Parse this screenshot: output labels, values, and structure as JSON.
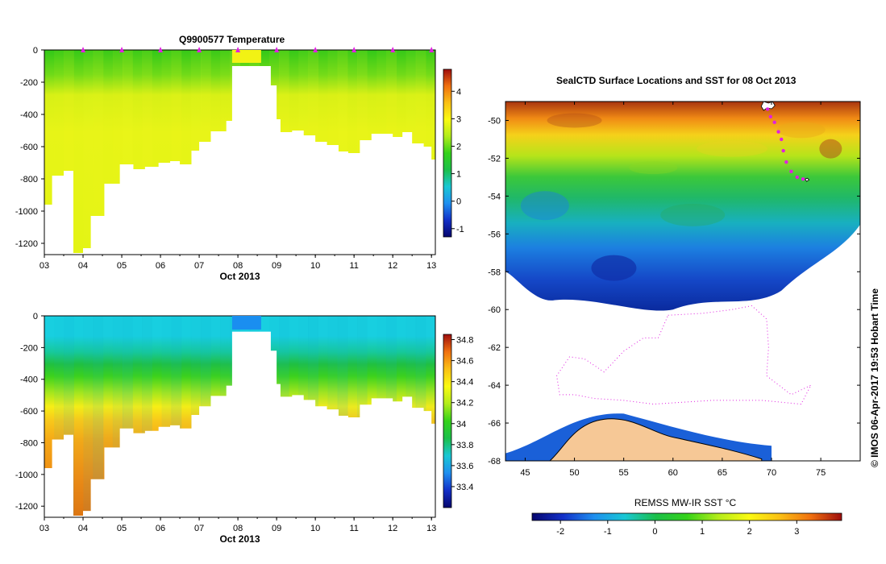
{
  "chart_data": [
    {
      "type": "heatmap",
      "title": "Q9900577  Temperature",
      "variable": "temperature",
      "xlabel": "Oct 2013",
      "x_ticks": [
        "03",
        "04",
        "05",
        "06",
        "07",
        "08",
        "09",
        "10",
        "11",
        "12",
        "13"
      ],
      "y_ticks": [
        "0",
        "-200",
        "-400",
        "-600",
        "-800",
        "-1000",
        "-1200"
      ],
      "ylim": [
        -1270,
        0
      ],
      "colorbar_ticks": [
        "4",
        "3",
        "2",
        "1",
        "0",
        "-1"
      ],
      "colorbar_range": [
        -1.3,
        4.8
      ],
      "profile_markers_day": [
        4.0,
        5.0,
        6.0,
        7.0,
        8.0,
        9.0,
        10.0,
        11.0,
        12.0,
        13.0
      ],
      "profiles": [
        {
          "day": 3.0,
          "depth": 960
        },
        {
          "day": 3.2,
          "depth": 780
        },
        {
          "day": 3.5,
          "depth": 750
        },
        {
          "day": 3.75,
          "depth": 1260
        },
        {
          "day": 4.0,
          "depth": 1230
        },
        {
          "day": 4.2,
          "depth": 1030
        },
        {
          "day": 4.55,
          "depth": 830
        },
        {
          "day": 4.95,
          "depth": 710
        },
        {
          "day": 5.3,
          "depth": 740
        },
        {
          "day": 5.6,
          "depth": 725
        },
        {
          "day": 5.95,
          "depth": 700
        },
        {
          "day": 6.25,
          "depth": 690
        },
        {
          "day": 6.5,
          "depth": 710
        },
        {
          "day": 6.8,
          "depth": 625
        },
        {
          "day": 7.0,
          "depth": 570
        },
        {
          "day": 7.3,
          "depth": 505
        },
        {
          "day": 7.7,
          "depth": 440
        },
        {
          "day": 7.85,
          "depth": 100
        },
        {
          "day": 8.6,
          "depth": 100
        },
        {
          "day": 8.85,
          "depth": 220
        },
        {
          "day": 9.0,
          "depth": 430
        },
        {
          "day": 9.1,
          "depth": 510
        },
        {
          "day": 9.4,
          "depth": 500
        },
        {
          "day": 9.7,
          "depth": 530
        },
        {
          "day": 10.0,
          "depth": 570
        },
        {
          "day": 10.3,
          "depth": 590
        },
        {
          "day": 10.6,
          "depth": 630
        },
        {
          "day": 10.85,
          "depth": 640
        },
        {
          "day": 11.15,
          "depth": 560
        },
        {
          "day": 11.45,
          "depth": 520
        },
        {
          "day": 11.75,
          "depth": 520
        },
        {
          "day": 12.0,
          "depth": 540
        },
        {
          "day": 12.25,
          "depth": 510
        },
        {
          "day": 12.5,
          "depth": 580
        },
        {
          "day": 12.8,
          "depth": 600
        },
        {
          "day": 13.0,
          "depth": 680
        }
      ]
    },
    {
      "type": "heatmap",
      "title": "",
      "variable": "salinity",
      "xlabel": "Oct 2013",
      "x_ticks": [
        "03",
        "04",
        "05",
        "06",
        "07",
        "08",
        "09",
        "10",
        "11",
        "12",
        "13"
      ],
      "y_ticks": [
        "0",
        "-200",
        "-400",
        "-600",
        "-800",
        "-1000",
        "-1200"
      ],
      "ylim": [
        -1270,
        0
      ],
      "colorbar_ticks": [
        "34.8",
        "34.6",
        "34.4",
        "34.2",
        "34",
        "33.8",
        "33.6",
        "33.4"
      ],
      "colorbar_range": [
        33.2,
        34.85
      ]
    },
    {
      "type": "heatmap",
      "title": "SealCTD Surface Locations and SST for 08 Oct 2013",
      "variable": "sea surface temperature",
      "x_ticks": [
        "45",
        "50",
        "55",
        "60",
        "65",
        "70",
        "75"
      ],
      "y_ticks": [
        "-50",
        "-52",
        "-54",
        "-56",
        "-58",
        "-60",
        "-62",
        "-64",
        "-66",
        "-68"
      ],
      "xlim": [
        43,
        79
      ],
      "ylim": [
        -68,
        -49
      ],
      "colorbar_title": "REMSS MW-IR SST °C",
      "colorbar_ticks": [
        "-2",
        "-1",
        "0",
        "1",
        "2",
        "3"
      ],
      "colorbar_range": [
        -2.6,
        3.95
      ],
      "track_points": [
        {
          "lon": 69.6,
          "lat": -49.4
        },
        {
          "lon": 69.9,
          "lat": -49.8
        },
        {
          "lon": 70.3,
          "lat": -50.1
        },
        {
          "lon": 70.7,
          "lat": -50.6
        },
        {
          "lon": 71.0,
          "lat": -51.0
        },
        {
          "lon": 71.2,
          "lat": -51.6
        },
        {
          "lon": 71.5,
          "lat": -52.2
        },
        {
          "lon": 72.0,
          "lat": -52.7
        },
        {
          "lon": 72.6,
          "lat": -53.0
        },
        {
          "lon": 73.2,
          "lat": -53.1
        }
      ],
      "credit": "© IMOS 06-Apr-2017 19:53 Hobart Time"
    }
  ]
}
